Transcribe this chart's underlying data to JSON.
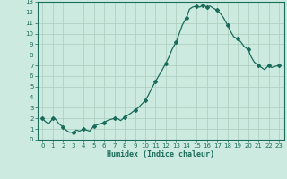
{
  "title": "",
  "xlabel": "Humidex (Indice chaleur)",
  "ylabel": "",
  "background_color": "#cceae0",
  "grid_color_major": "#aaccbb",
  "grid_color_minor": "#bbddd0",
  "line_color": "#1a6b5a",
  "marker_color": "#1a6b5a",
  "xlim": [
    -0.5,
    23.5
  ],
  "ylim": [
    0,
    13
  ],
  "yticks": [
    0,
    1,
    2,
    3,
    4,
    5,
    6,
    7,
    8,
    9,
    10,
    11,
    12,
    13
  ],
  "xticks": [
    0,
    1,
    2,
    3,
    4,
    5,
    6,
    7,
    8,
    9,
    10,
    11,
    12,
    13,
    14,
    15,
    16,
    17,
    18,
    19,
    20,
    21,
    22,
    23
  ],
  "x": [
    0,
    0.3,
    0.6,
    1.0,
    1.3,
    1.6,
    2.0,
    2.3,
    2.6,
    3.0,
    3.3,
    3.6,
    4.0,
    4.3,
    4.6,
    5.0,
    5.3,
    5.6,
    6.0,
    6.3,
    6.6,
    7.0,
    7.3,
    7.6,
    8.0,
    8.3,
    8.6,
    9.0,
    9.3,
    9.6,
    10.0,
    10.3,
    10.6,
    11.0,
    11.3,
    11.6,
    12.0,
    12.3,
    12.6,
    13.0,
    13.3,
    13.6,
    14.0,
    14.3,
    14.6,
    15.0,
    15.3,
    15.6,
    16.0,
    16.3,
    16.6,
    17.0,
    17.3,
    17.6,
    18.0,
    18.3,
    18.6,
    19.0,
    19.3,
    19.6,
    20.0,
    20.3,
    20.6,
    21.0,
    21.3,
    21.6,
    22.0,
    22.3,
    22.6,
    23.0
  ],
  "y": [
    2.0,
    1.7,
    1.5,
    2.0,
    1.9,
    1.5,
    1.2,
    0.9,
    0.7,
    0.7,
    0.9,
    0.8,
    1.0,
    0.9,
    0.8,
    1.3,
    1.4,
    1.5,
    1.6,
    1.8,
    1.9,
    2.0,
    2.0,
    1.8,
    2.1,
    2.3,
    2.5,
    2.8,
    3.0,
    3.3,
    3.7,
    4.2,
    4.8,
    5.5,
    6.0,
    6.5,
    7.2,
    7.8,
    8.5,
    9.2,
    10.0,
    10.8,
    11.5,
    12.3,
    12.5,
    12.6,
    12.5,
    12.7,
    12.5,
    12.6,
    12.4,
    12.2,
    11.9,
    11.5,
    10.8,
    10.2,
    9.7,
    9.5,
    9.2,
    8.8,
    8.5,
    7.8,
    7.3,
    7.0,
    6.8,
    6.6,
    7.0,
    6.8,
    6.9,
    7.0
  ],
  "marker_x": [
    0,
    1,
    2,
    3,
    4,
    5,
    6,
    7,
    8,
    9,
    10,
    11,
    12,
    13,
    14,
    15,
    15.6,
    16,
    17,
    18,
    19,
    20,
    21,
    22,
    23
  ],
  "marker_y": [
    2.0,
    2.0,
    1.2,
    0.7,
    1.0,
    1.3,
    1.6,
    2.0,
    2.1,
    2.8,
    3.7,
    5.5,
    7.2,
    9.2,
    11.5,
    12.6,
    12.7,
    12.5,
    12.2,
    10.8,
    9.5,
    8.5,
    7.0,
    7.0,
    7.0
  ]
}
